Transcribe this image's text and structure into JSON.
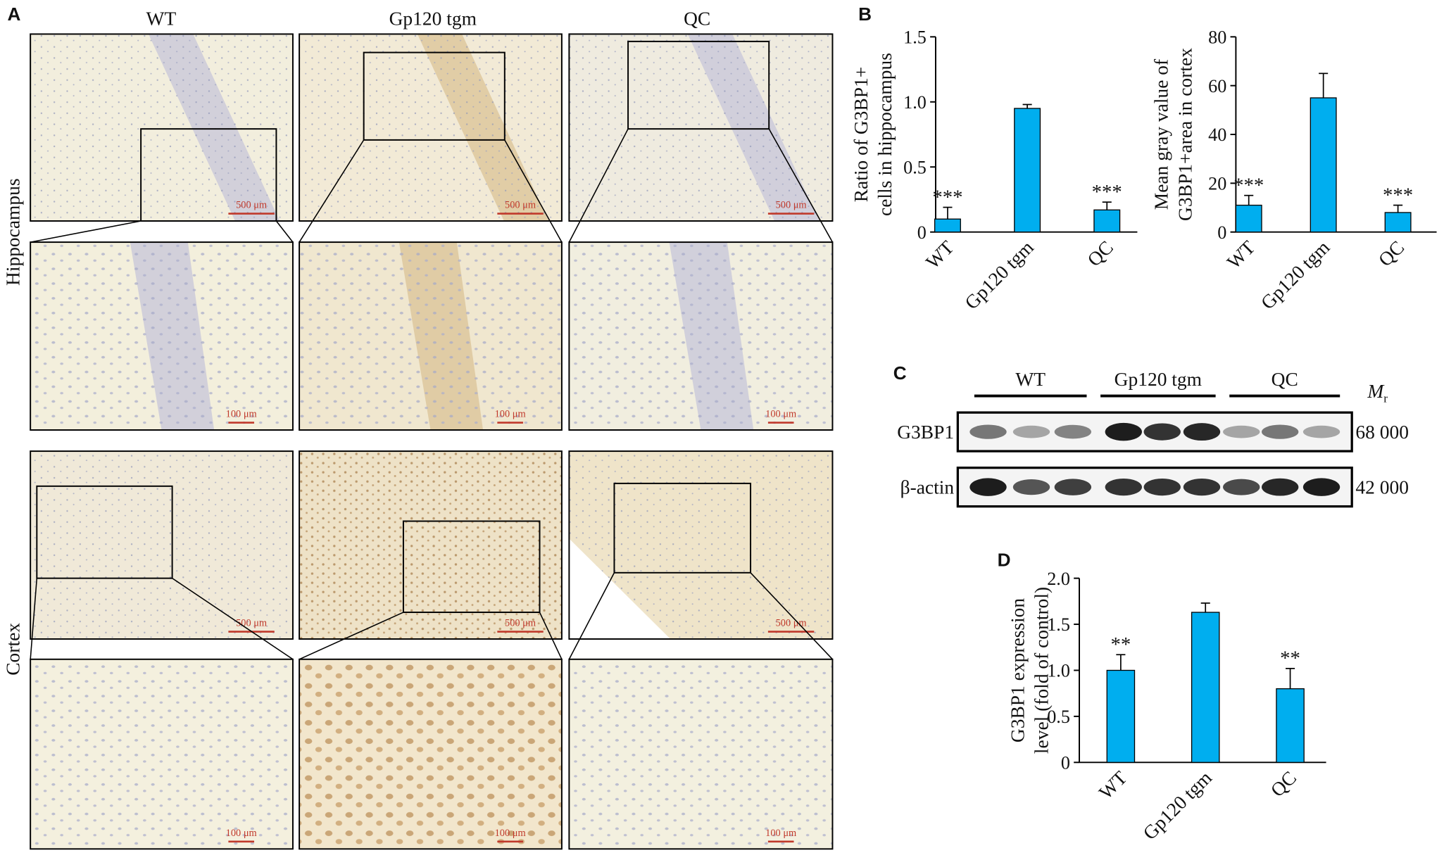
{
  "panel_labels": [
    "A",
    "B",
    "C",
    "D"
  ],
  "panel_a": {
    "columns": [
      "WT",
      "Gp120 tgm",
      "QC"
    ],
    "rows": [
      "Hippocampus",
      "Cortex"
    ],
    "scale_bars": [
      [
        "500 μm",
        "500 μm",
        "500 μm"
      ],
      [
        "100 μm",
        "100 μm",
        "100 μm"
      ],
      [
        "500 μm",
        "500 μm",
        "500 μm"
      ],
      [
        "100 μm",
        "100 μm",
        "100 μm"
      ]
    ]
  },
  "panel_c": {
    "groups": [
      "WT",
      "Gp120 tgm",
      "QC"
    ],
    "mr_symbol": "M",
    "mr_subscript": "r",
    "bands": [
      {
        "protein": "G3BP1",
        "mass": "68 000"
      },
      {
        "protein": "β-actin",
        "mass": "42 000"
      }
    ]
  },
  "chart_data": [
    {
      "type": "bar",
      "ylabel": [
        "Ratio of G3BP1+",
        "cells in hippocampus"
      ],
      "categories": [
        "WT",
        "Gp120 tgm",
        "QC"
      ],
      "values": [
        0.1,
        0.95,
        0.17
      ],
      "errors": [
        0.09,
        0.03,
        0.06
      ],
      "annotations": [
        "***",
        null,
        "***"
      ],
      "color": "#00aeef",
      "ylim": [
        0,
        1.5
      ],
      "yticks": [
        0,
        0.5,
        {
          "value": 1,
          "label": "1.0"
        },
        1.5
      ]
    },
    {
      "type": "bar",
      "ylabel": [
        "Mean gray value of",
        "G3BP1+area in cortex"
      ],
      "categories": [
        "WT",
        "Gp120 tgm",
        "QC"
      ],
      "values": [
        11,
        55,
        8
      ],
      "errors": [
        4,
        10,
        3
      ],
      "annotations": [
        "***",
        null,
        "***"
      ],
      "color": "#00aeef",
      "ylim": [
        0,
        80
      ],
      "yticks": [
        0,
        20,
        40,
        60,
        80
      ]
    },
    {
      "type": "bar",
      "ylabel": [
        "G3BP1 expression",
        "level (fold of control)"
      ],
      "categories": [
        "WT",
        "Gp120 tgm",
        "QC"
      ],
      "values": [
        1.0,
        1.63,
        0.8
      ],
      "errors": [
        0.17,
        0.1,
        0.22
      ],
      "annotations": [
        "**",
        null,
        "**"
      ],
      "color": "#00aeef",
      "ylim": [
        0,
        2
      ],
      "yticks": [
        0,
        0.5,
        {
          "value": 1,
          "label": "1.0"
        },
        1.5,
        {
          "value": 2,
          "label": "2.0"
        }
      ]
    }
  ]
}
